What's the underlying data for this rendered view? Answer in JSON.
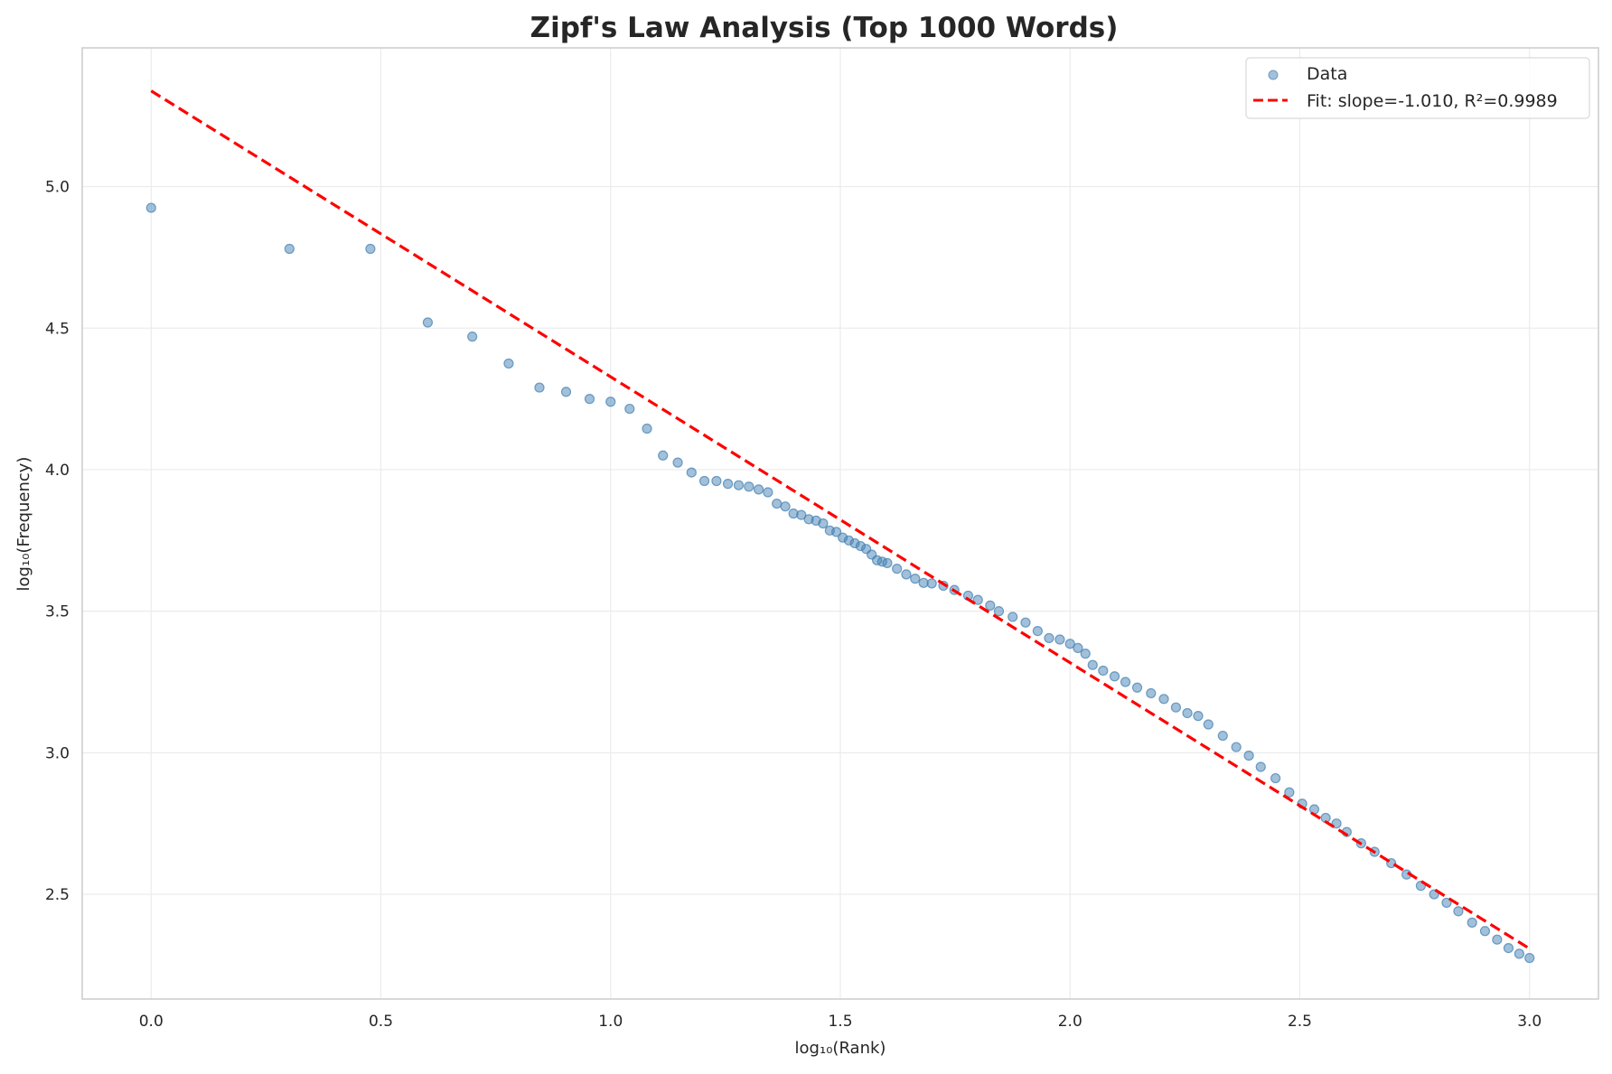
{
  "chart_data": {
    "type": "scatter",
    "title": "Zipf's Law Analysis (Top 1000 Words)",
    "xlabel": "log₁₀(Rank)",
    "ylabel": "log₁₀(Frequency)",
    "xlim": [
      -0.15,
      3.15
    ],
    "ylim": [
      2.13,
      5.49
    ],
    "xticks": [
      "0.0",
      "0.5",
      "1.0",
      "1.5",
      "2.0",
      "2.5",
      "3.0"
    ],
    "xtick_values": [
      0,
      0.5,
      1.0,
      1.5,
      2.0,
      2.5,
      3.0
    ],
    "yticks": [
      "2.5",
      "3.0",
      "3.5",
      "4.0",
      "4.5",
      "5.0"
    ],
    "ytick_values": [
      2.5,
      3.0,
      3.5,
      4.0,
      4.5,
      5.0
    ],
    "grid": true,
    "legend_placement": "top-right",
    "series": [
      {
        "name": "Data",
        "kind": "scatter",
        "color": "#4682b4",
        "points_rank_log10freq": [
          [
            1,
            4.925
          ],
          [
            2,
            4.78
          ],
          [
            3,
            4.78
          ],
          [
            4,
            4.52
          ],
          [
            5,
            4.47
          ],
          [
            6,
            4.375
          ],
          [
            7,
            4.29
          ],
          [
            8,
            4.275
          ],
          [
            9,
            4.25
          ],
          [
            10,
            4.24
          ],
          [
            11,
            4.215
          ],
          [
            12,
            4.145
          ],
          [
            13,
            4.05
          ],
          [
            14,
            4.025
          ],
          [
            15,
            3.99
          ],
          [
            16,
            3.96
          ],
          [
            17,
            3.96
          ],
          [
            18,
            3.95
          ],
          [
            19,
            3.945
          ],
          [
            20,
            3.94
          ],
          [
            21,
            3.93
          ],
          [
            22,
            3.92
          ],
          [
            23,
            3.88
          ],
          [
            24,
            3.87
          ],
          [
            25,
            3.845
          ],
          [
            26,
            3.84
          ],
          [
            27,
            3.825
          ],
          [
            28,
            3.82
          ],
          [
            29,
            3.81
          ],
          [
            30,
            3.785
          ],
          [
            31,
            3.78
          ],
          [
            32,
            3.76
          ],
          [
            33,
            3.75
          ],
          [
            34,
            3.74
          ],
          [
            35,
            3.73
          ],
          [
            36,
            3.72
          ],
          [
            37,
            3.7
          ],
          [
            38,
            3.68
          ],
          [
            39,
            3.675
          ],
          [
            40,
            3.67
          ],
          [
            42,
            3.65
          ],
          [
            44,
            3.63
          ],
          [
            46,
            3.615
          ],
          [
            48,
            3.6
          ],
          [
            50,
            3.598
          ],
          [
            53,
            3.59
          ],
          [
            56,
            3.575
          ],
          [
            60,
            3.555
          ],
          [
            63,
            3.54
          ],
          [
            67,
            3.52
          ],
          [
            70,
            3.5
          ],
          [
            75,
            3.48
          ],
          [
            80,
            3.46
          ],
          [
            85,
            3.43
          ],
          [
            90,
            3.405
          ],
          [
            95,
            3.4
          ],
          [
            100,
            3.385
          ],
          [
            104,
            3.37
          ],
          [
            108,
            3.35
          ],
          [
            112,
            3.31
          ],
          [
            118,
            3.29
          ],
          [
            125,
            3.27
          ],
          [
            132,
            3.25
          ],
          [
            140,
            3.23
          ],
          [
            150,
            3.21
          ],
          [
            160,
            3.19
          ],
          [
            170,
            3.16
          ],
          [
            180,
            3.14
          ],
          [
            190,
            3.13
          ],
          [
            200,
            3.1
          ],
          [
            215,
            3.06
          ],
          [
            230,
            3.02
          ],
          [
            245,
            2.99
          ],
          [
            260,
            2.95
          ],
          [
            280,
            2.91
          ],
          [
            300,
            2.86
          ],
          [
            320,
            2.82
          ],
          [
            340,
            2.8
          ],
          [
            360,
            2.77
          ],
          [
            380,
            2.75
          ],
          [
            400,
            2.72
          ],
          [
            430,
            2.68
          ],
          [
            460,
            2.65
          ],
          [
            500,
            2.61
          ],
          [
            540,
            2.57
          ],
          [
            580,
            2.53
          ],
          [
            620,
            2.5
          ],
          [
            660,
            2.47
          ],
          [
            700,
            2.44
          ],
          [
            750,
            2.4
          ],
          [
            800,
            2.37
          ],
          [
            850,
            2.34
          ],
          [
            900,
            2.31
          ],
          [
            950,
            2.29
          ],
          [
            1000,
            2.275
          ]
        ]
      },
      {
        "name": "Fit: slope=-1.010, R²=0.9989",
        "kind": "line",
        "style": "dashed",
        "color": "#ff0000",
        "slope": -1.01,
        "intercept": 5.338,
        "x_range": [
          0,
          3.0
        ]
      }
    ]
  }
}
